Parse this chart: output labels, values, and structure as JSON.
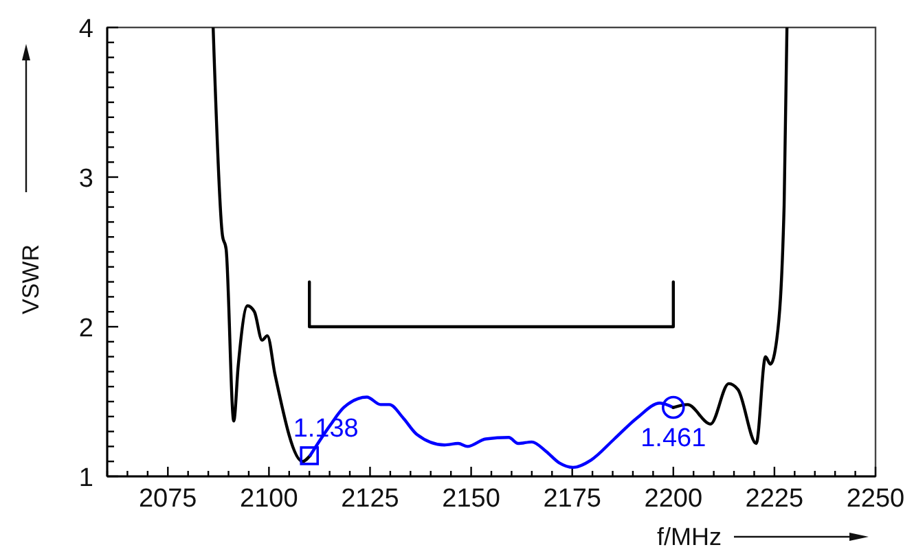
{
  "chart_data": {
    "type": "line",
    "xlabel": "f/MHz",
    "ylabel": "VSWR",
    "xlim": [
      2060,
      2250
    ],
    "ylim": [
      1,
      4
    ],
    "xticks": [
      {
        "value": 2060,
        "label": null
      },
      {
        "value": 2065,
        "label": null
      },
      {
        "value": 2070,
        "label": null
      },
      2075,
      {
        "value": 2080,
        "label": null
      },
      {
        "value": 2085,
        "label": null
      },
      {
        "value": 2090,
        "label": null
      },
      {
        "value": 2095,
        "label": null
      },
      2100,
      {
        "value": 2105,
        "label": null
      },
      {
        "value": 2110,
        "label": null
      },
      {
        "value": 2115,
        "label": null
      },
      {
        "value": 2120,
        "label": null
      },
      2125,
      {
        "value": 2130,
        "label": null
      },
      {
        "value": 2135,
        "label": null
      },
      {
        "value": 2140,
        "label": null
      },
      {
        "value": 2145,
        "label": null
      },
      2150,
      {
        "value": 2155,
        "label": null
      },
      {
        "value": 2160,
        "label": null
      },
      {
        "value": 2165,
        "label": null
      },
      {
        "value": 2170,
        "label": null
      },
      2175,
      {
        "value": 2180,
        "label": null
      },
      {
        "value": 2185,
        "label": null
      },
      {
        "value": 2190,
        "label": null
      },
      {
        "value": 2195,
        "label": null
      },
      2200,
      {
        "value": 2205,
        "label": null
      },
      {
        "value": 2210,
        "label": null
      },
      {
        "value": 2215,
        "label": null
      },
      {
        "value": 2220,
        "label": null
      },
      2225,
      {
        "value": 2230,
        "label": null
      },
      {
        "value": 2235,
        "label": null
      },
      {
        "value": 2240,
        "label": null
      },
      {
        "value": 2245,
        "label": null
      },
      2250
    ],
    "yticks": [
      1,
      {
        "value": 1.1,
        "label": null
      },
      {
        "value": 1.2,
        "label": null
      },
      {
        "value": 1.3,
        "label": null
      },
      {
        "value": 1.4,
        "label": null
      },
      {
        "value": 1.5,
        "label": null
      },
      {
        "value": 1.6,
        "label": null
      },
      {
        "value": 1.7,
        "label": null
      },
      {
        "value": 1.8,
        "label": null
      },
      {
        "value": 1.9,
        "label": null
      },
      2,
      {
        "value": 2.1,
        "label": null
      },
      {
        "value": 2.2,
        "label": null
      },
      {
        "value": 2.3,
        "label": null
      },
      {
        "value": 2.4,
        "label": null
      },
      {
        "value": 2.5,
        "label": null
      },
      {
        "value": 2.6,
        "label": null
      },
      {
        "value": 2.7,
        "label": null
      },
      {
        "value": 2.8,
        "label": null
      },
      {
        "value": 2.9,
        "label": null
      },
      3,
      {
        "value": 3.1,
        "label": null
      },
      {
        "value": 3.2,
        "label": null
      },
      {
        "value": 3.3,
        "label": null
      },
      {
        "value": 3.4,
        "label": null
      },
      {
        "value": 3.5,
        "label": null
      },
      {
        "value": 3.6,
        "label": null
      },
      {
        "value": 3.7,
        "label": null
      },
      {
        "value": 3.8,
        "label": null
      },
      {
        "value": 3.9,
        "label": null
      },
      4
    ],
    "grid": false,
    "series": [
      {
        "color": "#000000",
        "x": [
          2086.2,
          2088.5,
          2089.4,
          2091.3,
          2092.4,
          2094.7,
          2096.4,
          2098.3,
          2099.6,
          2101.5,
          2108.3,
          2110.2
        ],
        "values": [
          4,
          2.61,
          2.52,
          1.37,
          1.74,
          2.14,
          2.1,
          1.91,
          1.94,
          1.68,
          1.1,
          1.14
        ]
      },
      {
        "color": "#0000ff",
        "x": [
          2110.2,
          2115.1,
          2118.5,
          2124.2,
          2127.6,
          2129.8,
          2133.2,
          2136.6,
          2143.4,
          2146.8,
          2149.1,
          2153.6,
          2159.3,
          2161.6,
          2165,
          2168.4,
          2171.8,
          2175.2,
          2179.7,
          2185.4,
          2191,
          2196.7,
          2200
        ],
        "values": [
          1.14,
          1.34,
          1.46,
          1.53,
          1.48,
          1.48,
          1.39,
          1.28,
          1.21,
          1.22,
          1.2,
          1.25,
          1.26,
          1.22,
          1.23,
          1.17,
          1.09,
          1.06,
          1.11,
          1.25,
          1.39,
          1.49,
          1.46
        ]
      },
      {
        "color": "#000000",
        "x": [
          2200,
          2203.5,
          2209.2,
          2213.7,
          2216,
          2220.5,
          2222.8,
          2224,
          2225.6,
          2227.4,
          2228.1
        ],
        "values": [
          1.46,
          1.48,
          1.35,
          1.62,
          1.58,
          1.22,
          1.8,
          1.75,
          1.92,
          2.81,
          4
        ]
      },
      {
        "color": "#000000",
        "x": [
          2110,
          2110,
          2200,
          2200
        ],
        "values": [
          2.3,
          2,
          2,
          2.3
        ]
      },
      {
        "type": "scatter",
        "color": "#0000ff",
        "marker": "square",
        "x": [
          2110
        ],
        "values": [
          1.138
        ]
      },
      {
        "type": "scatter",
        "color": "#0000ff",
        "marker": "circle",
        "x": [
          2200
        ],
        "values": [
          1.461
        ]
      }
    ],
    "annotations": [
      {
        "text": "1.138",
        "x": 2110,
        "y": 1.138
      },
      {
        "text": "1.461",
        "x": 2200,
        "y": 1.461
      }
    ]
  }
}
